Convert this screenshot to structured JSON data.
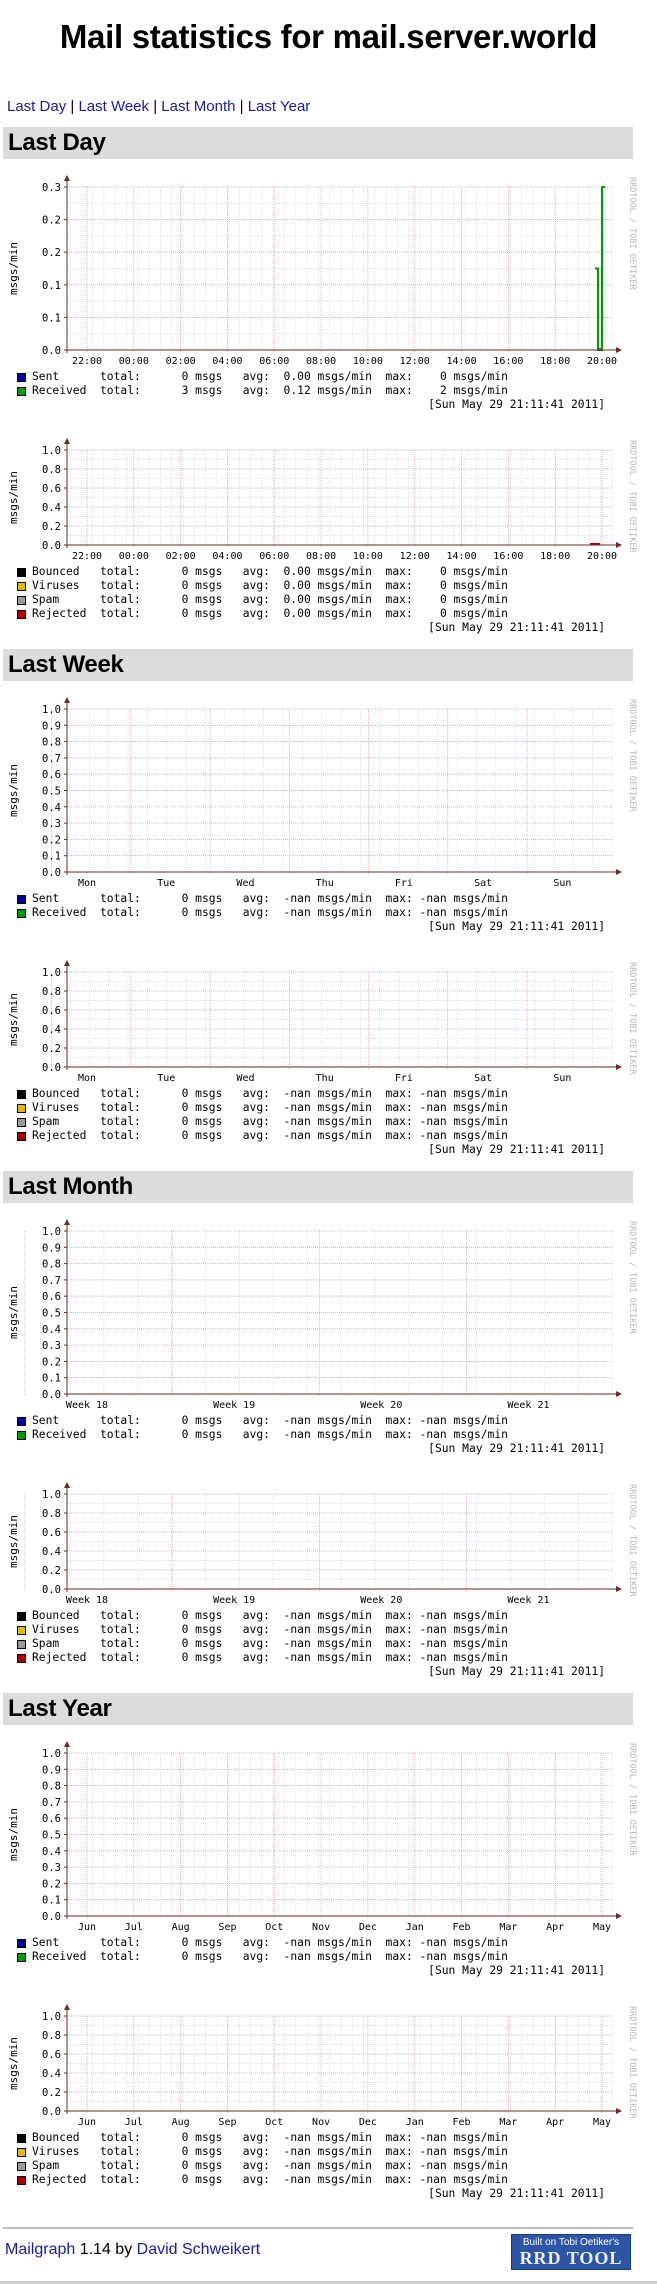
{
  "page": {
    "title": "Mail statistics for mail.server.world",
    "nav": [
      {
        "label": "Last Day"
      },
      {
        "label": "Last Week"
      },
      {
        "label": "Last Month"
      },
      {
        "label": "Last Year"
      }
    ],
    "nav_separator": " | ",
    "footer": {
      "app_link": "Mailgraph",
      "version_text": " 1.14 by ",
      "author_link": "David Schweikert",
      "badge_line1": "Built on Tobi Oetiker's",
      "badge_line2": "RRD TOOL"
    }
  },
  "common": {
    "ylabel": "msgs/min",
    "watermark": "RRDTOOL / TOBI OETIKER",
    "timestamp": "[Sun May 29 21:11:41 2011]",
    "colors": {
      "sent": "#000099",
      "received": "#009900",
      "bounced": "#000000",
      "viruses": "#ddbb00",
      "spam": "#999999",
      "rejected": "#aa0000",
      "grid_major": "#e5a0a0",
      "grid_minor": "#d8d8d8",
      "axis": "#6e2a2a",
      "section_bg": "#dcdcdc",
      "link": "#1a1aa6"
    }
  },
  "sections": [
    {
      "title": "Last Day",
      "graphs": [
        {
          "kind": "traffic",
          "yticks": [
            "0.3",
            "0.2",
            "0.2",
            "0.1",
            "0.1",
            "0.0"
          ],
          "xticks": [
            "22:00",
            "00:00",
            "02:00",
            "04:00",
            "06:00",
            "08:00",
            "10:00",
            "12:00",
            "14:00",
            "16:00",
            "18:00",
            "20:00"
          ],
          "legend": [
            {
              "name": "Sent",
              "total": "0 msgs",
              "avg": "0.00 msgs/min",
              "max": "0 msgs/min",
              "color": "sent"
            },
            {
              "name": "Received",
              "total": "3 msgs",
              "avg": "0.12 msgs/min",
              "max": "2 msgs/min",
              "color": "received"
            }
          ]
        },
        {
          "kind": "problems",
          "yticks": [
            "1.0",
            "0.8",
            "0.6",
            "0.4",
            "0.2",
            "0.0"
          ],
          "xticks": [
            "22:00",
            "00:00",
            "02:00",
            "04:00",
            "06:00",
            "08:00",
            "10:00",
            "12:00",
            "14:00",
            "16:00",
            "18:00",
            "20:00"
          ],
          "legend": [
            {
              "name": "Bounced",
              "total": "0 msgs",
              "avg": "0.00 msgs/min",
              "max": "0 msgs/min",
              "color": "bounced"
            },
            {
              "name": "Viruses",
              "total": "0 msgs",
              "avg": "0.00 msgs/min",
              "max": "0 msgs/min",
              "color": "viruses"
            },
            {
              "name": "Spam",
              "total": "0 msgs",
              "avg": "0.00 msgs/min",
              "max": "0 msgs/min",
              "color": "spam"
            },
            {
              "name": "Rejected",
              "total": "0 msgs",
              "avg": "0.00 msgs/min",
              "max": "0 msgs/min",
              "color": "rejected"
            }
          ]
        }
      ]
    },
    {
      "title": "Last Week",
      "graphs": [
        {
          "kind": "traffic",
          "yticks": [
            "1.0",
            "0.9",
            "0.8",
            "0.7",
            "0.6",
            "0.5",
            "0.4",
            "0.3",
            "0.2",
            "0.1",
            "0.0"
          ],
          "xticks": [
            "Mon",
            "Tue",
            "Wed",
            "Thu",
            "Fri",
            "Sat",
            "Sun"
          ],
          "legend": [
            {
              "name": "Sent",
              "total": "0 msgs",
              "avg": "-nan msgs/min",
              "max": "-nan msgs/min",
              "color": "sent"
            },
            {
              "name": "Received",
              "total": "0 msgs",
              "avg": "-nan msgs/min",
              "max": "-nan msgs/min",
              "color": "received"
            }
          ]
        },
        {
          "kind": "problems",
          "yticks": [
            "1.0",
            "0.8",
            "0.6",
            "0.4",
            "0.2",
            "0.0"
          ],
          "xticks": [
            "Mon",
            "Tue",
            "Wed",
            "Thu",
            "Fri",
            "Sat",
            "Sun"
          ],
          "legend": [
            {
              "name": "Bounced",
              "total": "0 msgs",
              "avg": "-nan msgs/min",
              "max": "-nan msgs/min",
              "color": "bounced"
            },
            {
              "name": "Viruses",
              "total": "0 msgs",
              "avg": "-nan msgs/min",
              "max": "-nan msgs/min",
              "color": "viruses"
            },
            {
              "name": "Spam",
              "total": "0 msgs",
              "avg": "-nan msgs/min",
              "max": "-nan msgs/min",
              "color": "spam"
            },
            {
              "name": "Rejected",
              "total": "0 msgs",
              "avg": "-nan msgs/min",
              "max": "-nan msgs/min",
              "color": "rejected"
            }
          ]
        }
      ]
    },
    {
      "title": "Last Month",
      "graphs": [
        {
          "kind": "traffic",
          "yticks": [
            "1.0",
            "0.9",
            "0.8",
            "0.7",
            "0.6",
            "0.5",
            "0.4",
            "0.3",
            "0.2",
            "0.1",
            "0.0"
          ],
          "xticks": [
            "Week 18",
            "Week 19",
            "Week 20",
            "Week 21"
          ],
          "legend": [
            {
              "name": "Sent",
              "total": "0 msgs",
              "avg": "-nan msgs/min",
              "max": "-nan msgs/min",
              "color": "sent"
            },
            {
              "name": "Received",
              "total": "0 msgs",
              "avg": "-nan msgs/min",
              "max": "-nan msgs/min",
              "color": "received"
            }
          ]
        },
        {
          "kind": "problems",
          "yticks": [
            "1.0",
            "0.8",
            "0.6",
            "0.4",
            "0.2",
            "0.0"
          ],
          "xticks": [
            "Week 18",
            "Week 19",
            "Week 20",
            "Week 21"
          ],
          "legend": [
            {
              "name": "Bounced",
              "total": "0 msgs",
              "avg": "-nan msgs/min",
              "max": "-nan msgs/min",
              "color": "bounced"
            },
            {
              "name": "Viruses",
              "total": "0 msgs",
              "avg": "-nan msgs/min",
              "max": "-nan msgs/min",
              "color": "viruses"
            },
            {
              "name": "Spam",
              "total": "0 msgs",
              "avg": "-nan msgs/min",
              "max": "-nan msgs/min",
              "color": "spam"
            },
            {
              "name": "Rejected",
              "total": "0 msgs",
              "avg": "-nan msgs/min",
              "max": "-nan msgs/min",
              "color": "rejected"
            }
          ]
        }
      ]
    },
    {
      "title": "Last Year",
      "graphs": [
        {
          "kind": "traffic",
          "yticks": [
            "1.0",
            "0.9",
            "0.8",
            "0.7",
            "0.6",
            "0.5",
            "0.4",
            "0.3",
            "0.2",
            "0.1",
            "0.0"
          ],
          "xticks": [
            "Jun",
            "Jul",
            "Aug",
            "Sep",
            "Oct",
            "Nov",
            "Dec",
            "Jan",
            "Feb",
            "Mar",
            "Apr",
            "May"
          ],
          "legend": [
            {
              "name": "Sent",
              "total": "0 msgs",
              "avg": "-nan msgs/min",
              "max": "-nan msgs/min",
              "color": "sent"
            },
            {
              "name": "Received",
              "total": "0 msgs",
              "avg": "-nan msgs/min",
              "max": "-nan msgs/min",
              "color": "received"
            }
          ]
        },
        {
          "kind": "problems",
          "yticks": [
            "1.0",
            "0.8",
            "0.6",
            "0.4",
            "0.2",
            "0.0"
          ],
          "xticks": [
            "Jun",
            "Jul",
            "Aug",
            "Sep",
            "Oct",
            "Nov",
            "Dec",
            "Jan",
            "Feb",
            "Mar",
            "Apr",
            "May"
          ],
          "legend": [
            {
              "name": "Bounced",
              "total": "0 msgs",
              "avg": "-nan msgs/min",
              "max": "-nan msgs/min",
              "color": "bounced"
            },
            {
              "name": "Viruses",
              "total": "0 msgs",
              "avg": "-nan msgs/min",
              "max": "-nan msgs/min",
              "color": "viruses"
            },
            {
              "name": "Spam",
              "total": "0 msgs",
              "avg": "-nan msgs/min",
              "max": "-nan msgs/min",
              "color": "spam"
            },
            {
              "name": "Rejected",
              "total": "0 msgs",
              "avg": "-nan msgs/min",
              "max": "-nan msgs/min",
              "color": "rejected"
            }
          ]
        }
      ]
    }
  ],
  "chart_data": [
    {
      "type": "line",
      "title": "Last Day - Sent/Received",
      "xlabel": "",
      "ylabel": "msgs/min",
      "categories": [
        "22:00",
        "00:00",
        "02:00",
        "04:00",
        "06:00",
        "08:00",
        "10:00",
        "12:00",
        "14:00",
        "16:00",
        "18:00",
        "20:00"
      ],
      "ylim": [
        0,
        0.3
      ],
      "grid": true,
      "legend_position": "bottom",
      "series": [
        {
          "name": "Sent",
          "values": [
            0,
            0,
            0,
            0,
            0,
            0,
            0,
            0,
            0,
            0,
            0,
            0
          ]
        },
        {
          "name": "Received",
          "values": [
            0,
            0,
            0,
            0,
            0,
            0,
            0,
            0,
            0,
            0,
            0,
            0
          ],
          "spikes": [
            {
              "x": "20:35",
              "y": 0.15
            },
            {
              "x": "20:45",
              "y": 0.3
            }
          ]
        }
      ],
      "annotations": [
        "Sent total 0 msgs avg 0.00 max 0",
        "Received total 3 msgs avg 0.12 max 2",
        "[Sun May 29 21:11:41 2011]"
      ]
    },
    {
      "type": "line",
      "title": "Last Day - Bounced/Viruses/Spam/Rejected",
      "ylabel": "msgs/min",
      "categories": [
        "22:00",
        "00:00",
        "02:00",
        "04:00",
        "06:00",
        "08:00",
        "10:00",
        "12:00",
        "14:00",
        "16:00",
        "18:00",
        "20:00"
      ],
      "ylim": [
        0,
        1.0
      ],
      "grid": true,
      "legend_position": "bottom",
      "series": [
        {
          "name": "Bounced",
          "values": [
            0,
            0,
            0,
            0,
            0,
            0,
            0,
            0,
            0,
            0,
            0,
            0
          ]
        },
        {
          "name": "Viruses",
          "values": [
            0,
            0,
            0,
            0,
            0,
            0,
            0,
            0,
            0,
            0,
            0,
            0
          ]
        },
        {
          "name": "Spam",
          "values": [
            0,
            0,
            0,
            0,
            0,
            0,
            0,
            0,
            0,
            0,
            0,
            0
          ]
        },
        {
          "name": "Rejected",
          "values": [
            0,
            0,
            0,
            0,
            0,
            0,
            0,
            0,
            0,
            0,
            0,
            0
          ]
        }
      ]
    },
    {
      "type": "line",
      "title": "Last Week - Sent/Received",
      "ylabel": "msgs/min",
      "categories": [
        "Mon",
        "Tue",
        "Wed",
        "Thu",
        "Fri",
        "Sat",
        "Sun"
      ],
      "ylim": [
        0,
        1.0
      ],
      "grid": true,
      "series": [
        {
          "name": "Sent",
          "values": []
        },
        {
          "name": "Received",
          "values": []
        }
      ]
    },
    {
      "type": "line",
      "title": "Last Week - Bounced/Viruses/Spam/Rejected",
      "ylabel": "msgs/min",
      "categories": [
        "Mon",
        "Tue",
        "Wed",
        "Thu",
        "Fri",
        "Sat",
        "Sun"
      ],
      "ylim": [
        0,
        1.0
      ],
      "grid": true,
      "series": [
        {
          "name": "Bounced",
          "values": []
        },
        {
          "name": "Viruses",
          "values": []
        },
        {
          "name": "Spam",
          "values": []
        },
        {
          "name": "Rejected",
          "values": []
        }
      ]
    },
    {
      "type": "line",
      "title": "Last Month - Sent/Received",
      "ylabel": "msgs/min",
      "categories": [
        "Week 18",
        "Week 19",
        "Week 20",
        "Week 21"
      ],
      "ylim": [
        0,
        1.0
      ],
      "grid": true,
      "series": [
        {
          "name": "Sent",
          "values": []
        },
        {
          "name": "Received",
          "values": []
        }
      ]
    },
    {
      "type": "line",
      "title": "Last Month - Bounced/Viruses/Spam/Rejected",
      "ylabel": "msgs/min",
      "categories": [
        "Week 18",
        "Week 19",
        "Week 20",
        "Week 21"
      ],
      "ylim": [
        0,
        1.0
      ],
      "grid": true,
      "series": [
        {
          "name": "Bounced",
          "values": []
        },
        {
          "name": "Viruses",
          "values": []
        },
        {
          "name": "Spam",
          "values": []
        },
        {
          "name": "Rejected",
          "values": []
        }
      ]
    },
    {
      "type": "line",
      "title": "Last Year - Sent/Received",
      "ylabel": "msgs/min",
      "categories": [
        "Jun",
        "Jul",
        "Aug",
        "Sep",
        "Oct",
        "Nov",
        "Dec",
        "Jan",
        "Feb",
        "Mar",
        "Apr",
        "May"
      ],
      "ylim": [
        0,
        1.0
      ],
      "grid": true,
      "series": [
        {
          "name": "Sent",
          "values": []
        },
        {
          "name": "Received",
          "values": []
        }
      ]
    },
    {
      "type": "line",
      "title": "Last Year - Bounced/Viruses/Spam/Rejected",
      "ylabel": "msgs/min",
      "categories": [
        "Jun",
        "Jul",
        "Aug",
        "Sep",
        "Oct",
        "Nov",
        "Dec",
        "Jan",
        "Feb",
        "Mar",
        "Apr",
        "May"
      ],
      "ylim": [
        0,
        1.0
      ],
      "grid": true,
      "series": [
        {
          "name": "Bounced",
          "values": []
        },
        {
          "name": "Viruses",
          "values": []
        },
        {
          "name": "Spam",
          "values": []
        },
        {
          "name": "Rejected",
          "values": []
        }
      ]
    }
  ]
}
